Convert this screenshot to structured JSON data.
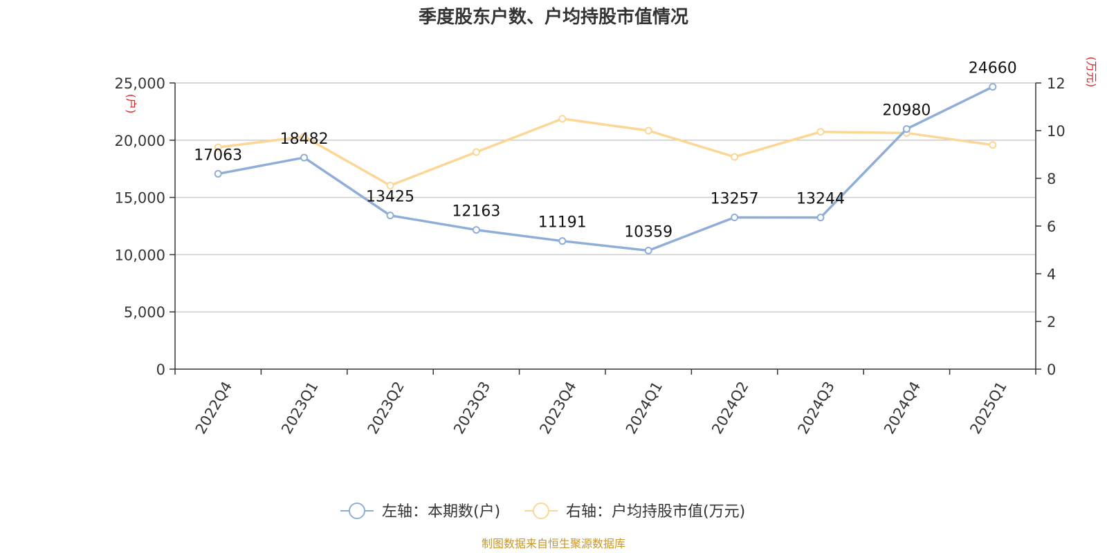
{
  "chart_data": {
    "type": "line",
    "title": "季度股东户数、户均持股市值情况",
    "categories": [
      "2022Q4",
      "2023Q1",
      "2023Q2",
      "2023Q3",
      "2023Q4",
      "2024Q1",
      "2024Q2",
      "2024Q3",
      "2024Q4",
      "2025Q1"
    ],
    "left_axis": {
      "unit": "(户)",
      "ylim": [
        0,
        25000
      ],
      "ticks": [
        0,
        5000,
        10000,
        15000,
        20000,
        25000
      ],
      "tick_labels": [
        "0",
        "5,000",
        "10,000",
        "15,000",
        "20,000",
        "25,000"
      ]
    },
    "right_axis": {
      "unit": "(万元)",
      "ylim": [
        0,
        12
      ],
      "ticks": [
        0,
        2,
        4,
        6,
        8,
        10,
        12
      ],
      "tick_labels": [
        "0",
        "2",
        "4",
        "6",
        "8",
        "10",
        "12"
      ]
    },
    "grid": true,
    "legend_position": "bottom",
    "series": [
      {
        "name": "左轴：本期数(户)",
        "axis": "left",
        "color": "#8eaed8",
        "values": [
          17063,
          18482,
          13425,
          12163,
          11191,
          10359,
          13257,
          13244,
          20980,
          24660
        ],
        "data_labels": [
          "17063",
          "18482",
          "13425",
          "12163",
          "11191",
          "10359",
          "13257",
          "13244",
          "20980",
          "24660"
        ]
      },
      {
        "name": "右轴：户均持股市值(万元)",
        "axis": "right",
        "color": "#fcd694",
        "values": [
          9.3,
          9.75,
          7.7,
          9.1,
          10.5,
          10.0,
          8.9,
          9.95,
          9.9,
          9.4
        ]
      }
    ],
    "source": "制图数据来自恒生聚源数据库"
  }
}
